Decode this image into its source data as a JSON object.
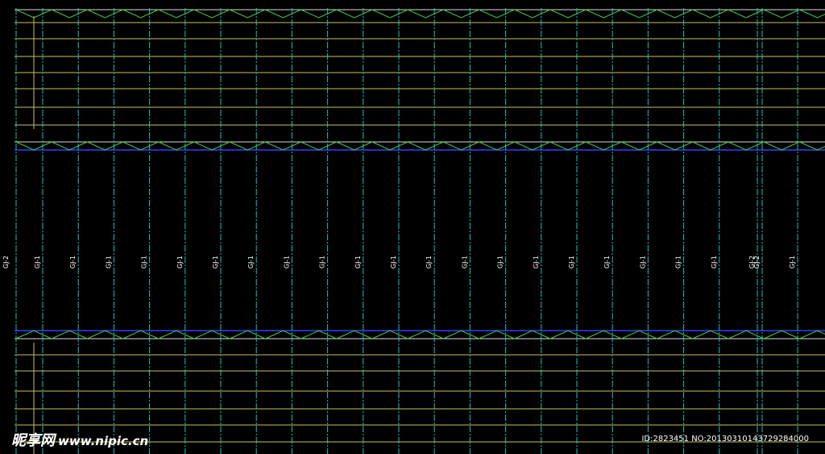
{
  "columns": [
    {
      "label": "GJ-2"
    },
    {
      "label": "GJ-1"
    },
    {
      "label": "GJ-1"
    },
    {
      "label": "GJ-1"
    },
    {
      "label": "GJ-1"
    },
    {
      "label": "GJ-1"
    },
    {
      "label": "GJ-1"
    },
    {
      "label": "GJ-1"
    },
    {
      "label": "GJ-1"
    },
    {
      "label": "GJ-1"
    },
    {
      "label": "GJ-1"
    },
    {
      "label": "GJ-1"
    },
    {
      "label": "GJ-1"
    },
    {
      "label": "GJ-1"
    },
    {
      "label": "GJ-1"
    },
    {
      "label": "GJ-1"
    },
    {
      "label": "GJ-1"
    },
    {
      "label": "GJ-1"
    },
    {
      "label": "GJ-1"
    },
    {
      "label": "GJ-1"
    },
    {
      "label": "GJ-1"
    },
    {
      "label": "GJ-2"
    },
    {
      "label": "GJ-2"
    },
    {
      "label": "GJ-1"
    }
  ],
  "watermark": {
    "logo": "昵享网",
    "url": "www.nipic.cn"
  },
  "image_id": "ID:2823451 NO:20130310143729284000"
}
